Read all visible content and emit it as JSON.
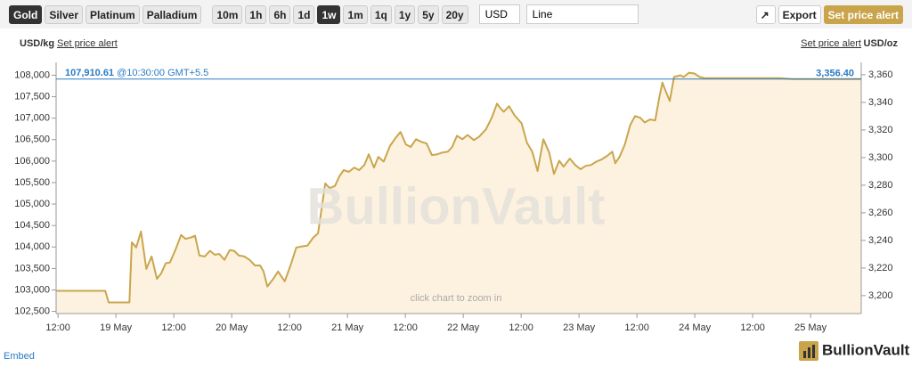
{
  "toolbar": {
    "metals": [
      {
        "label": "Gold",
        "active": true
      },
      {
        "label": "Silver",
        "active": false
      },
      {
        "label": "Platinum",
        "active": false
      },
      {
        "label": "Palladium",
        "active": false
      }
    ],
    "ranges": [
      {
        "label": "10m",
        "active": false
      },
      {
        "label": "1h",
        "active": false
      },
      {
        "label": "6h",
        "active": false
      },
      {
        "label": "1d",
        "active": false
      },
      {
        "label": "1w",
        "active": true
      },
      {
        "label": "1m",
        "active": false
      },
      {
        "label": "1q",
        "active": false
      },
      {
        "label": "1y",
        "active": false
      },
      {
        "label": "5y",
        "active": false
      },
      {
        "label": "20y",
        "active": false
      }
    ],
    "currency": "USD",
    "chart_style": "Line",
    "export": "Export",
    "alert": "Set price alert"
  },
  "chart_data": {
    "type": "line",
    "unit_left": "USD/kg",
    "unit_right": "USD/oz",
    "alert_left": "Set price alert",
    "alert_right": "Set price alert",
    "watermark": "BullionVault",
    "hint": "click chart to zoom in",
    "color": "#c9a64e",
    "fill_color": "#fdf2df",
    "x": [
      -0.4,
      9.8,
      10.5,
      14.8,
      15.3,
      16.2,
      17.2,
      18.3,
      19.4,
      20.5,
      21.4,
      22.3,
      23.2,
      24.4,
      25.5,
      26.4,
      27.5,
      28.4,
      29.3,
      30.4,
      31.5,
      32.5,
      33.4,
      34.5,
      35.6,
      36.5,
      37.5,
      38.6,
      39.7,
      40.8,
      41.9,
      42.6,
      43.4,
      44.5,
      45.6,
      47.0,
      48.2,
      49.4,
      50.4,
      51.7,
      52.9,
      53.9,
      55.4,
      56.3,
      57.4,
      58.3,
      59.2,
      60.3,
      61.4,
      62.4,
      63.5,
      64.4,
      65.5,
      66.4,
      67.5,
      68.8,
      69.9,
      71.0,
      72.1,
      73.1,
      74.2,
      75.3,
      76.4,
      77.5,
      78.6,
      79.7,
      80.8,
      81.7,
      82.7,
      83.8,
      84.9,
      86.2,
      87.3,
      88.7,
      89.9,
      91.0,
      91.7,
      92.4,
      93.5,
      94.6,
      96.1,
      97.2,
      98.3,
      99.4,
      100.6,
      101.8,
      102.8,
      103.9,
      104.8,
      106.1,
      107.2,
      108.3,
      109.4,
      110.5,
      111.6,
      112.7,
      113.8,
      114.9,
      115.5,
      116.4,
      117.5,
      118.6,
      119.6,
      120.7,
      121.6,
      122.7,
      123.8,
      124.7,
      125.3,
      125.6,
      126.8,
      127.7,
      129.0,
      129.7,
      130.8,
      131.9,
      133.0,
      134.1,
      149.6,
      152.2,
      166.4
    ],
    "values": [
      102980,
      102980,
      102710,
      102710,
      104110,
      103990,
      104360,
      103490,
      103780,
      103260,
      103390,
      103620,
      103640,
      103950,
      104280,
      104190,
      104220,
      104260,
      103800,
      103780,
      103910,
      103820,
      103840,
      103700,
      103930,
      103910,
      103800,
      103780,
      103700,
      103570,
      103570,
      103430,
      103080,
      103240,
      103430,
      103200,
      103570,
      103990,
      104010,
      104030,
      104220,
      104320,
      105480,
      105370,
      105420,
      105640,
      105790,
      105750,
      105850,
      105790,
      105910,
      106160,
      105850,
      106100,
      105990,
      106350,
      106530,
      106680,
      106390,
      106330,
      106510,
      106450,
      106410,
      106140,
      106160,
      106200,
      106220,
      106330,
      106590,
      106510,
      106610,
      106490,
      106570,
      106740,
      107010,
      107340,
      107230,
      107150,
      107280,
      107070,
      106880,
      106430,
      106220,
      105770,
      106510,
      106200,
      105700,
      106010,
      105870,
      106060,
      105910,
      105810,
      105890,
      105910,
      105990,
      106040,
      106120,
      106220,
      105950,
      106100,
      106390,
      106840,
      107050,
      107010,
      106900,
      106970,
      106950,
      107520,
      107830,
      107730,
      107400,
      107960,
      108000,
      107960,
      108060,
      108040,
      107960,
      107930,
      107930,
      107910,
      107910
    ],
    "xlim": [
      -0.4,
      166.5
    ],
    "xticks": [
      {
        "value": 0,
        "label": "12:00"
      },
      {
        "value": 12,
        "label": "19 May"
      },
      {
        "value": 24,
        "label": "12:00"
      },
      {
        "value": 36,
        "label": "20 May"
      },
      {
        "value": 48,
        "label": "12:00"
      },
      {
        "value": 60,
        "label": "21 May"
      },
      {
        "value": 72,
        "label": "12:00"
      },
      {
        "value": 84,
        "label": "22 May"
      },
      {
        "value": 96,
        "label": "12:00"
      },
      {
        "value": 108,
        "label": "23 May"
      },
      {
        "value": 120,
        "label": "12:00"
      },
      {
        "value": 132,
        "label": "24 May"
      },
      {
        "value": 144,
        "label": "12:00"
      },
      {
        "value": 156,
        "label": "25 May"
      }
    ],
    "ylim": [
      102450,
      108300
    ],
    "yticks": [
      {
        "value": 102500,
        "label": "102,500"
      },
      {
        "value": 103000,
        "label": "103,000"
      },
      {
        "value": 103500,
        "label": "103,500"
      },
      {
        "value": 104000,
        "label": "104,000"
      },
      {
        "value": 104500,
        "label": "104,500"
      },
      {
        "value": 105000,
        "label": "105,000"
      },
      {
        "value": 105500,
        "label": "105,500"
      },
      {
        "value": 106000,
        "label": "106,000"
      },
      {
        "value": 106500,
        "label": "106,500"
      },
      {
        "value": 107000,
        "label": "107,000"
      },
      {
        "value": 107500,
        "label": "107,500"
      },
      {
        "value": 108000,
        "label": "108,000"
      }
    ],
    "y2lim": [
      3187,
      3369
    ],
    "y2ticks": [
      {
        "value": 3200,
        "label": "3,200"
      },
      {
        "value": 3220,
        "label": "3,220"
      },
      {
        "value": 3240,
        "label": "3,240"
      },
      {
        "value": 3260,
        "label": "3,260"
      },
      {
        "value": 3280,
        "label": "3,280"
      },
      {
        "value": 3300,
        "label": "3,300"
      },
      {
        "value": 3320,
        "label": "3,320"
      },
      {
        "value": 3340,
        "label": "3,340"
      },
      {
        "value": 3360,
        "label": "3,360"
      }
    ],
    "grid": false,
    "crosshair": {
      "value": 107910.61,
      "label": "107,910.61",
      "time": "@10:30:00 GMT+5.5",
      "value_oz": 3356.4,
      "label_oz": "3,356.40",
      "color": "#2a7bc4"
    }
  },
  "footer": {
    "embed": "Embed",
    "logo": "BullionVault"
  }
}
